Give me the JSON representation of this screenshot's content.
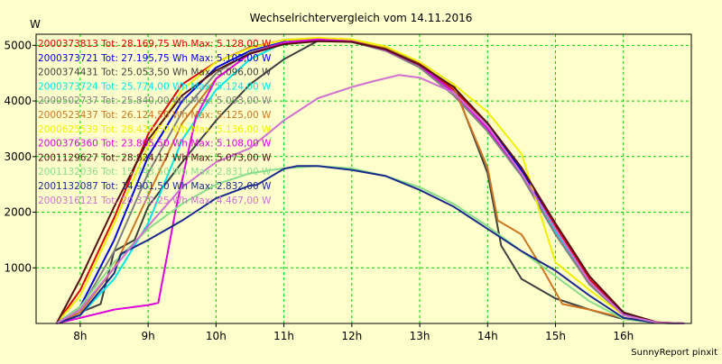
{
  "chart_data": {
    "type": "line",
    "title": "Wechselrichtervergleich vom 14.11.2016",
    "ylabel": "W",
    "xlabel": "",
    "footer": "SunnyReport pinxit",
    "xlim": [
      7.35,
      17.0
    ],
    "ylim": [
      0,
      5200
    ],
    "x_ticks": [
      8,
      9,
      10,
      11,
      12,
      13,
      14,
      15,
      16
    ],
    "x_tick_labels": [
      "8h",
      "9h",
      "10h",
      "11h",
      "12h",
      "13h",
      "14h",
      "15h",
      "16h"
    ],
    "y_ticks": [
      1000,
      2000,
      3000,
      4000,
      5000
    ],
    "y_tick_labels": [
      "1000",
      "2000",
      "3000",
      "4000",
      "5000"
    ],
    "grid": true,
    "legend_position": "top-left",
    "series": [
      {
        "name": "2000373813 Tot: 28.169,75 Wh Max: 5.128,00 W",
        "color": "#dd0000",
        "x": [
          7.65,
          8.0,
          8.5,
          9.0,
          9.5,
          10.0,
          10.5,
          11.0,
          11.5,
          12.0,
          12.5,
          13.0,
          13.5,
          14.0,
          14.5,
          15.0,
          15.5,
          16.0,
          16.5,
          16.9
        ],
        "y": [
          0,
          600,
          1900,
          3400,
          4300,
          4700,
          4960,
          5100,
          5128,
          5090,
          4950,
          4680,
          4200,
          3600,
          2800,
          1750,
          800,
          180,
          20,
          0
        ]
      },
      {
        "name": "2000373721 Tot: 27.195,75 Wh Max: 5.102,00 W",
        "color": "#0000dd",
        "x": [
          7.65,
          8.0,
          8.5,
          9.0,
          9.5,
          10.0,
          10.5,
          11.0,
          11.5,
          12.0,
          12.5,
          13.0,
          13.5,
          14.0,
          14.5,
          15.0,
          15.5,
          16.0,
          16.5,
          16.9
        ],
        "y": [
          0,
          300,
          1500,
          3000,
          4000,
          4600,
          4900,
          5060,
          5102,
          5080,
          4930,
          4650,
          4150,
          3550,
          2750,
          1700,
          750,
          160,
          15,
          0
        ]
      },
      {
        "name": "2000374431 Tot: 25.053,50 Wh Max: 5.096,00 W",
        "color": "#404040",
        "x": [
          7.65,
          8.0,
          8.3,
          8.5,
          8.8,
          9.0,
          9.5,
          10.0,
          10.5,
          11.0,
          11.5,
          12.0,
          12.5,
          13.0,
          13.5,
          14.0,
          14.2,
          14.5,
          15.0,
          15.5,
          16.0,
          16.5,
          16.9
        ],
        "y": [
          0,
          200,
          350,
          1300,
          1500,
          2100,
          2900,
          3650,
          4300,
          4750,
          5080,
          5096,
          4950,
          4700,
          4300,
          2700,
          1400,
          800,
          450,
          250,
          80,
          10,
          0
        ]
      },
      {
        "name": "2000373724 Tot: 25.774,00 Wh Max: 5.124,00 W",
        "color": "#00e5e5",
        "x": [
          7.65,
          8.0,
          8.5,
          9.0,
          9.5,
          10.0,
          10.5,
          11.0,
          11.5,
          12.0,
          12.5,
          13.0,
          13.5,
          14.0,
          14.5,
          15.0,
          15.5,
          16.0,
          16.5,
          16.9
        ],
        "y": [
          0,
          150,
          800,
          1800,
          3300,
          4200,
          4750,
          5050,
          5124,
          5080,
          4920,
          4640,
          4150,
          3500,
          2700,
          1650,
          700,
          150,
          15,
          0
        ]
      },
      {
        "name": "2000502737 Tot: 25.840,00 Wh Max: 5.093,00 W",
        "color": "#808080",
        "x": [
          7.65,
          8.0,
          8.5,
          9.0,
          9.5,
          10.0,
          10.5,
          11.0,
          11.5,
          12.0,
          12.5,
          13.0,
          13.5,
          14.0,
          14.5,
          15.0,
          15.5,
          16.0,
          16.5,
          16.9
        ],
        "y": [
          0,
          250,
          1300,
          2700,
          3800,
          4500,
          4880,
          5050,
          5093,
          5060,
          4900,
          4600,
          4100,
          3450,
          2650,
          1600,
          700,
          150,
          15,
          0
        ]
      },
      {
        "name": "2000523437 Tot: 26.124,50 Wh Max: 5.125,00 W",
        "color": "#cc7722",
        "x": [
          7.65,
          8.0,
          8.5,
          9.0,
          9.5,
          10.0,
          10.5,
          11.0,
          11.5,
          12.0,
          12.5,
          13.0,
          13.5,
          14.0,
          14.15,
          14.5,
          14.8,
          15.1,
          15.5,
          16.0,
          16.5,
          16.9
        ],
        "y": [
          0,
          200,
          1000,
          2300,
          3600,
          4400,
          4850,
          5050,
          5125,
          5100,
          4950,
          4650,
          4250,
          2800,
          1850,
          1600,
          1000,
          350,
          250,
          100,
          10,
          0
        ]
      },
      {
        "name": "2000625539 Tot: 28.420,50 Wh Max: 5.136,00 W",
        "color": "#f0f000",
        "x": [
          7.65,
          8.0,
          8.5,
          9.0,
          9.5,
          10.0,
          10.5,
          11.0,
          11.5,
          12.0,
          12.5,
          13.0,
          13.5,
          14.0,
          14.5,
          15.0,
          15.5,
          16.0,
          16.5,
          16.9
        ],
        "y": [
          0,
          500,
          1800,
          3200,
          4200,
          4700,
          4950,
          5100,
          5136,
          5110,
          4980,
          4700,
          4300,
          3800,
          3050,
          1100,
          600,
          150,
          15,
          0
        ]
      },
      {
        "name": "2000376360 Tot: 23.805,50 Wh Max: 5.108,00 W",
        "color": "#dd00dd",
        "x": [
          7.65,
          8.0,
          8.5,
          9.0,
          9.15,
          9.4,
          9.7,
          10.0,
          10.5,
          11.0,
          11.5,
          12.0,
          12.5,
          13.0,
          13.5,
          14.0,
          14.5,
          15.0,
          15.5,
          16.0,
          16.5,
          16.9
        ],
        "y": [
          0,
          100,
          250,
          330,
          370,
          2000,
          3700,
          4400,
          4850,
          5050,
          5108,
          5070,
          4920,
          4640,
          4150,
          3500,
          2700,
          1700,
          750,
          150,
          15,
          0
        ]
      },
      {
        "name": "2001129627 Tot: 28.824,17 Wh Max: 5.073,00 W",
        "color": "#551111",
        "x": [
          7.65,
          8.0,
          8.5,
          9.0,
          9.5,
          10.0,
          10.5,
          11.0,
          11.5,
          12.0,
          12.5,
          13.0,
          13.5,
          14.0,
          14.5,
          15.0,
          15.5,
          16.0,
          16.5,
          16.9
        ],
        "y": [
          0,
          800,
          2100,
          3300,
          4100,
          4550,
          4850,
          5020,
          5073,
          5060,
          4930,
          4650,
          4250,
          3600,
          2800,
          1800,
          850,
          200,
          20,
          0
        ]
      },
      {
        "name": "2001132036 Tot: 15.743,50 Wh Max: 2.831,00 W",
        "color": "#88dd88",
        "x": [
          7.65,
          8.0,
          8.5,
          9.0,
          9.5,
          10.0,
          10.5,
          11.0,
          11.5,
          12.0,
          12.5,
          13.0,
          13.5,
          14.0,
          14.5,
          15.0,
          15.5,
          16.0,
          16.5,
          16.9
        ],
        "y": [
          0,
          300,
          1100,
          1700,
          2150,
          2500,
          2700,
          2790,
          2831,
          2790,
          2650,
          2450,
          2150,
          1750,
          1300,
          850,
          400,
          80,
          10,
          0
        ]
      },
      {
        "name": "2001132087 Tot: 14.901,50 Wh Max: 2.832,00 W",
        "color": "#1a2a8c",
        "x": [
          7.65,
          8.0,
          8.5,
          8.6,
          9.0,
          9.5,
          10.0,
          10.5,
          10.6,
          11.0,
          11.2,
          11.5,
          12.0,
          12.5,
          13.0,
          13.5,
          14.0,
          14.5,
          15.0,
          15.5,
          16.0,
          16.5,
          16.9
        ],
        "y": [
          0,
          150,
          900,
          1250,
          1500,
          1850,
          2250,
          2480,
          2490,
          2780,
          2832,
          2830,
          2760,
          2650,
          2400,
          2100,
          1700,
          1300,
          950,
          500,
          100,
          10,
          0
        ]
      },
      {
        "name": "2000316121 Tot: 20.370,25 Wh Max: 4.467,00 W",
        "color": "#d070d0",
        "x": [
          7.65,
          8.0,
          8.5,
          9.0,
          9.5,
          10.0,
          10.5,
          11.0,
          11.5,
          12.0,
          12.3,
          12.7,
          13.0,
          13.5,
          14.0,
          14.5,
          15.0,
          15.5,
          16.0,
          16.5,
          16.9
        ],
        "y": [
          0,
          250,
          1000,
          1750,
          2450,
          2900,
          3150,
          3650,
          4050,
          4250,
          4350,
          4467,
          4420,
          4150,
          3550,
          2700,
          1700,
          750,
          150,
          15,
          0
        ]
      }
    ]
  }
}
